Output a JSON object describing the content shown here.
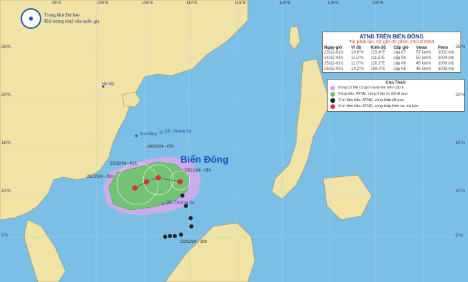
{
  "header": {
    "org_line1": "Trung tâm Dự báo",
    "org_line2": "Khí tượng thuỷ văn quốc gia"
  },
  "panel": {
    "title": "ATNĐ TRÊN BIỂN ĐÔNG",
    "subtitle": "Tin phát lúc: 02 giờ 00 phút, 23/12/2024",
    "columns": [
      "Ngày-giờ",
      "Vĩ độ",
      "Kinh độ",
      "Cấp gió",
      "Vmax",
      "Pmin"
    ],
    "rows": [
      [
        "23/12-01h",
        "10.6°N",
        "113.4°E",
        "cấp 07",
        "57 km/h",
        "1002 mb"
      ],
      [
        "24/12-01h",
        "11.5°N",
        "111.5°E",
        "cấp 06",
        "50 km/h",
        "1004 mb"
      ],
      [
        "25/12-01h",
        "11.0°N",
        "110.2°E",
        "cấp 06",
        "45 km/h",
        "1006 mb"
      ],
      [
        "26/12-01h",
        "10.2°N",
        "108.0°E",
        "cấp 06",
        "46 km/h",
        "1008 mb"
      ]
    ]
  },
  "legend": {
    "title": "Chú Thích",
    "items": [
      {
        "label": "Vùng có thể có gió mạnh lên trên cấp 6",
        "color": "#d9a8e8"
      },
      {
        "label": "Vùng bão, ATNĐ, vùng thấp có thể đi qua",
        "color": "#74c374"
      },
      {
        "label": "Vị trí tâm bão, ATNĐ, vùng thấp đã qua",
        "color": "#222222"
      },
      {
        "label": "Vị trí tâm bão, ATNĐ, vùng thấp hiện tại, dự báo",
        "color": "#d93a3a"
      }
    ]
  },
  "places": {
    "hanoi": "Hà Nội",
    "danang": "Đà Nẵng",
    "hoangsa": "QĐ. Hoàng Sa",
    "truongsa": "QĐ. Trường Sa",
    "bien_dong": "Biển Đông"
  },
  "track_labels": {
    "t24": "24/12/24 - 01h",
    "t25": "25/12/24 - 01h",
    "t26": "26/12/24 - 01h",
    "t23": "23/12/24 - 01h",
    "t21": "21/12/24 - 10h"
  },
  "ticks": {
    "top": [
      "95°E",
      "100°E",
      "105°E",
      "110°E",
      "115°E",
      "120°E",
      "125°E",
      "130°E"
    ],
    "left": [
      "25°N",
      "20°N",
      "15°N",
      "10°N",
      "5°N"
    ],
    "right": [
      "25°N",
      "20°N",
      "15°N",
      "10°N",
      "5°N"
    ]
  },
  "colors": {
    "sea": "#7bbfe6",
    "land": "#f1e3a6",
    "mountain": "#d4c08a",
    "risk_zone": "#d9a8e8",
    "track_zone": "#74c374",
    "current_marker": "#d93a3a"
  }
}
